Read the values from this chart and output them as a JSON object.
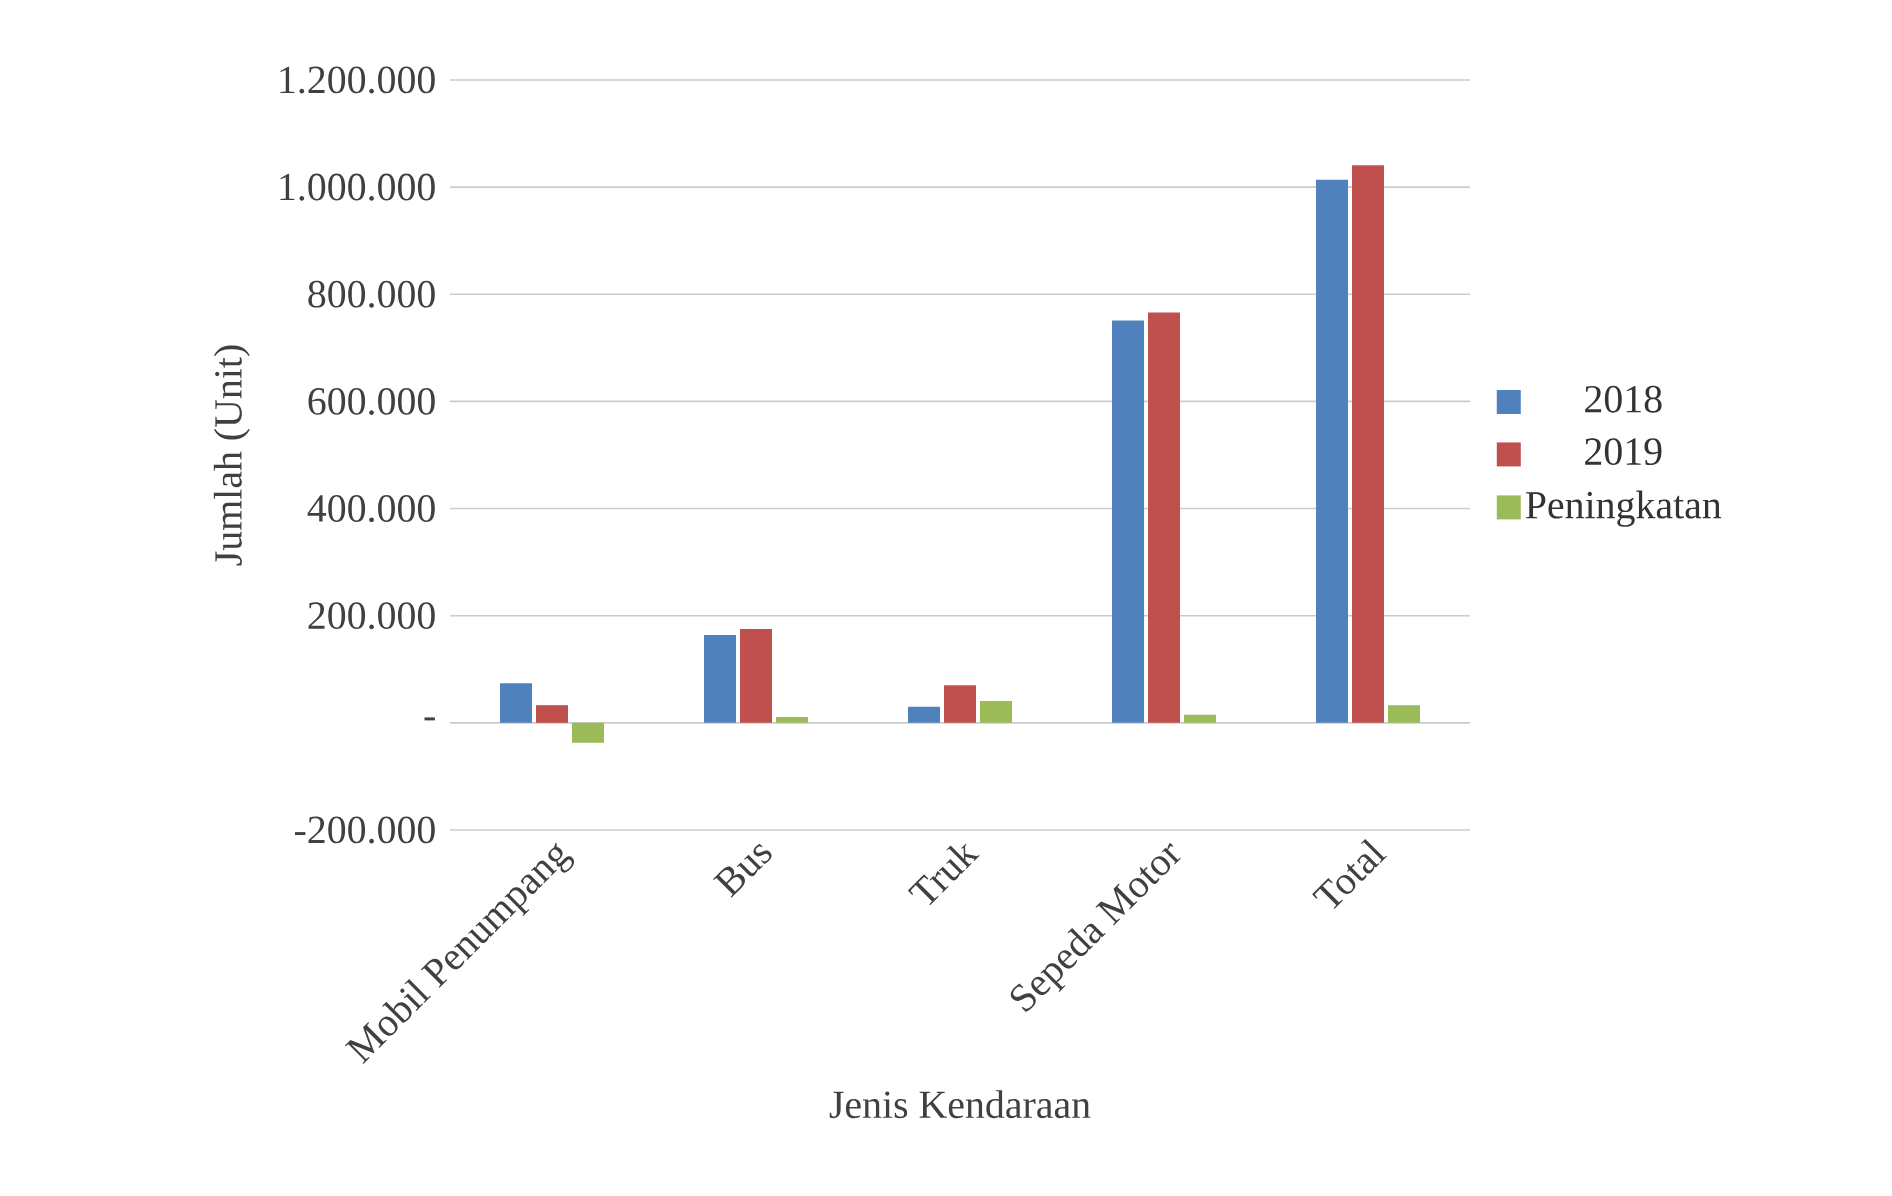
{
  "chart_data": {
    "type": "bar",
    "xlabel": "Jenis Kendaraan",
    "ylabel": "Jumlah (Unit)",
    "categories": [
      "Mobil Penumpang",
      "Bus",
      "Truk",
      "Sepeda Motor",
      "Total"
    ],
    "series": [
      {
        "name": "2018",
        "color": "#4f81bd",
        "values": [
          74000,
          164000,
          30000,
          751000,
          1014000
        ]
      },
      {
        "name": "2019",
        "color": "#c0504d",
        "values": [
          33000,
          175000,
          70000,
          766000,
          1041000
        ]
      },
      {
        "name": "Peningkatan",
        "color": "#9bbb59",
        "values": [
          -37000,
          11000,
          41000,
          15000,
          33000
        ]
      }
    ],
    "ylim": [
      -200000,
      1200000
    ],
    "yticks": [
      {
        "value": -200000,
        "label": "-200.000"
      },
      {
        "value": 0,
        "label": "-"
      },
      {
        "value": 200000,
        "label": "200.000"
      },
      {
        "value": 400000,
        "label": "400.000"
      },
      {
        "value": 600000,
        "label": "600.000"
      },
      {
        "value": 800000,
        "label": "800.000"
      },
      {
        "value": 1000000,
        "label": "1.000.000"
      },
      {
        "value": 1200000,
        "label": "1.200.000"
      }
    ],
    "grid": "y",
    "legend": "right"
  }
}
